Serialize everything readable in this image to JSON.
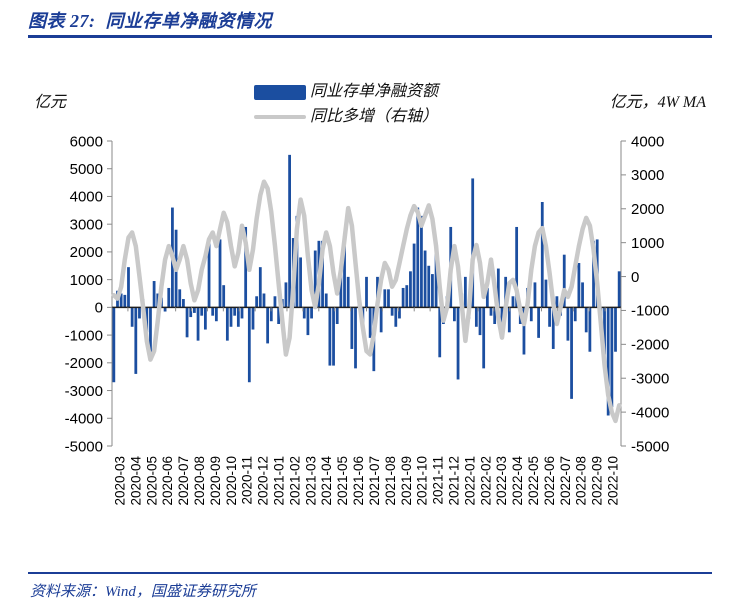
{
  "header": {
    "title": "图表 27:  同业存单净融资情况"
  },
  "footer": {
    "source": "资料来源：Wind，国盛证券研究所"
  },
  "colors": {
    "accent_navy": "#1B3D96",
    "bar_blue": "#1B4EA0",
    "ma_gray": "#C9C9C9"
  },
  "chart_data": {
    "type": "bar",
    "title": "同业存单净融资情况",
    "grid": "off",
    "legend_position": "top-center",
    "left_axis": {
      "title": "亿元",
      "min": -5000,
      "max": 6000,
      "step": 1000,
      "ticks": [
        6000,
        5000,
        4000,
        3000,
        2000,
        1000,
        0,
        -1000,
        -2000,
        -3000,
        -4000,
        -5000
      ]
    },
    "right_axis": {
      "title": "亿元，4W MA",
      "min": -5000,
      "max": 4000,
      "step": 1000,
      "ticks": [
        4000,
        3000,
        2000,
        1000,
        0,
        -1000,
        -2000,
        -3000,
        -4000,
        -5000
      ]
    },
    "x_labels": [
      "2020-03",
      "2020-04",
      "2020-05",
      "2020-06",
      "2020-07",
      "2020-08",
      "2020-09",
      "2020-10",
      "2020-11",
      "2020-12",
      "2021-01",
      "2021-02",
      "2021-03",
      "2021-04",
      "2021-05",
      "2021-06",
      "2021-07",
      "2021-08",
      "2021-09",
      "2021-10",
      "2021-11",
      "2021-12",
      "2022-01",
      "2022-02",
      "2022-03",
      "2022-04",
      "2022-05",
      "2022-06",
      "2022-07",
      "2022-08",
      "2022-09",
      "2022-10"
    ],
    "bar_series": {
      "name": "同业存单净融资额",
      "axis": "left",
      "color": "#1B4EA0",
      "unit": "亿元",
      "values": [
        -2700,
        600,
        500,
        450,
        1450,
        -700,
        -2400,
        -400,
        300,
        -900,
        -1800,
        950,
        500,
        350,
        -150,
        700,
        3600,
        2800,
        650,
        300,
        -1080,
        -350,
        -200,
        -1200,
        -300,
        -800,
        2450,
        -300,
        -500,
        2450,
        800,
        -1200,
        -700,
        -300,
        -700,
        -400,
        2900,
        -2700,
        -800,
        400,
        1450,
        500,
        -1300,
        -500,
        400,
        -600,
        300,
        900,
        5500,
        2500,
        3300,
        1800,
        -400,
        -1000,
        -400,
        2050,
        2400,
        2400,
        500,
        -2100,
        -2100,
        -600,
        1450,
        2450,
        1100,
        -1500,
        -2200,
        400,
        -600,
        1100,
        -1100,
        -2300,
        1100,
        -900,
        650,
        650,
        -300,
        -700,
        -400,
        700,
        800,
        1300,
        2300,
        3600,
        3300,
        2050,
        1500,
        1200,
        2300,
        -1800,
        -600,
        400,
        2900,
        -500,
        -2600,
        500,
        1100,
        -400,
        4650,
        -700,
        -1000,
        -2200,
        700,
        -300,
        -600,
        1400,
        -800,
        1100,
        -900,
        400,
        2900,
        -600,
        -1700,
        700,
        -500,
        900,
        -1100,
        3800,
        1000,
        -700,
        -1500,
        400,
        -300,
        1900,
        -1200,
        -3300,
        -500,
        1600,
        900,
        -900,
        -1600,
        2400,
        2450,
        -700,
        -1700,
        -3900,
        -3600,
        -1600,
        1300
      ]
    },
    "line_series": {
      "name": "同比多增（右轴）",
      "axis": "right",
      "color": "#C9C9C9",
      "unit": "亿元",
      "values": [
        -550,
        -650,
        -300,
        500,
        1150,
        1300,
        900,
        0,
        -900,
        -1900,
        -2450,
        -2200,
        -1300,
        -300,
        500,
        900,
        600,
        200,
        500,
        900,
        500,
        -200,
        -700,
        -400,
        200,
        600,
        1100,
        1300,
        900,
        1400,
        1880,
        1600,
        900,
        300,
        700,
        1500,
        1000,
        200,
        800,
        1700,
        2400,
        2800,
        2600,
        1900,
        900,
        -200,
        -1300,
        -2300,
        -1800,
        -300,
        1400,
        2270,
        1800,
        600,
        -400,
        -900,
        -200,
        800,
        1300,
        900,
        100,
        -500,
        200,
        1100,
        2020,
        1500,
        400,
        -700,
        -1500,
        -2200,
        -2300,
        -1700,
        -800,
        -100,
        400,
        200,
        -300,
        -100,
        400,
        900,
        1400,
        1800,
        2080,
        1900,
        1500,
        1800,
        2100,
        1700,
        900,
        -300,
        -1300,
        -900,
        200,
        900,
        300,
        -800,
        -1900,
        -1000,
        500,
        930,
        400,
        -600,
        -200,
        500,
        -300,
        -1200,
        -1800,
        -900,
        -200,
        -100,
        -400,
        -1000,
        -1400,
        -800,
        200,
        900,
        1300,
        1430,
        900,
        100,
        -800,
        -1400,
        -900,
        -400,
        -600,
        -300,
        300,
        900,
        1400,
        1730,
        1500,
        800,
        -200,
        -1400,
        -2600,
        -3500,
        -4000,
        -4260,
        -3800
      ]
    }
  }
}
